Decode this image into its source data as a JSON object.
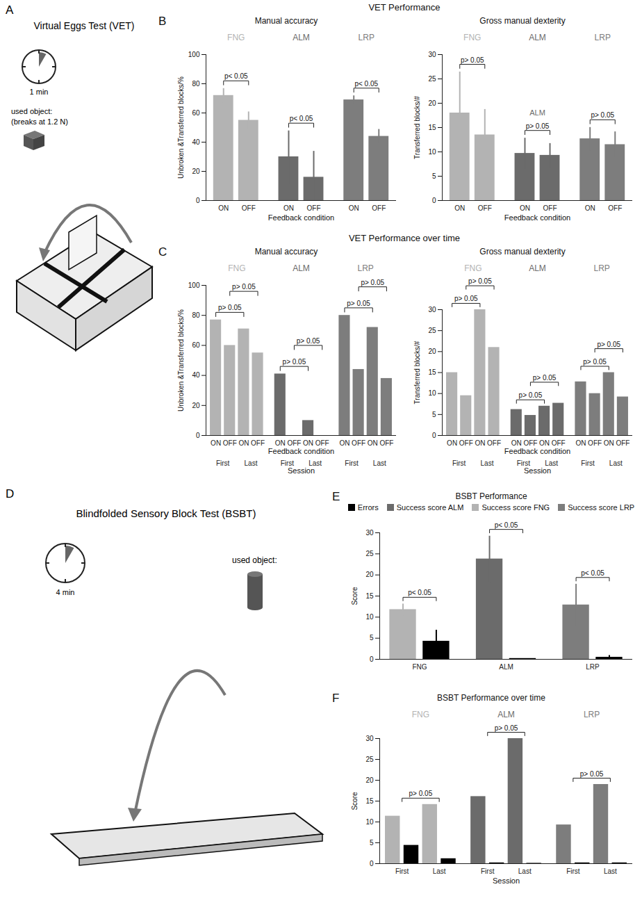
{
  "illustrations": [
    {
      "panel": "A",
      "title": "Virtual Eggs Test (VET)",
      "timer": "1 min",
      "object_label": "used object:",
      "object_note": "(breaks at 1.2 N)"
    },
    {
      "panel": "D",
      "title": "Blindfolded Sensory Block Test (BSBT)",
      "timer": "4 min",
      "object_label": "used object:"
    }
  ],
  "chart_data": [
    {
      "panel": "B",
      "supertitle": "VET Performance",
      "type": "bar",
      "title": "Manual accuracy",
      "ylabel": "Unbroken &Transferred blocks/%",
      "xlabel": "Feedback condition",
      "categories": [
        "ON",
        "OFF"
      ],
      "ylim": [
        0,
        100
      ],
      "yticks": [
        0,
        20,
        40,
        60,
        80,
        100
      ],
      "groups": [
        {
          "name": "FNG",
          "color": "#b3b3b3",
          "values": [
            72,
            55
          ],
          "errors": [
            5,
            6
          ]
        },
        {
          "name": "ALM",
          "color": "#6b6b6b",
          "values": [
            30,
            16
          ],
          "errors": [
            18,
            18
          ]
        },
        {
          "name": "LRP",
          "color": "#7d7d7d",
          "values": [
            69,
            44
          ],
          "errors": [
            3,
            5
          ]
        }
      ],
      "comparisons": [
        {
          "text": "p< 0.05",
          "from": [
            0,
            0
          ],
          "to": [
            0,
            1
          ]
        },
        {
          "text": "p< 0.05",
          "from": [
            1,
            0
          ],
          "to": [
            1,
            1
          ]
        },
        {
          "text": "p< 0.05",
          "from": [
            2,
            0
          ],
          "to": [
            2,
            1
          ]
        }
      ]
    },
    {
      "type": "bar",
      "title": "Gross manual dexterity",
      "ylabel": "Transferred blocks/#",
      "xlabel": "Feedback condition",
      "categories": [
        "ON",
        "OFF"
      ],
      "ylim": [
        0,
        30
      ],
      "yticks": [
        0,
        5,
        10,
        15,
        20,
        25,
        30
      ],
      "groups": [
        {
          "name": "FNG",
          "color": "#b3b3b3",
          "values": [
            18,
            13.5
          ],
          "errors": [
            8.5,
            5.3
          ]
        },
        {
          "name": "ALM",
          "color": "#6b6b6b",
          "values": [
            9.7,
            9.3
          ],
          "errors": [
            3.2,
            2.5
          ]
        },
        {
          "name": "LRP",
          "color": "#7d7d7d",
          "values": [
            12.7,
            11.5
          ],
          "errors": [
            2.4,
            2.7
          ]
        }
      ],
      "comparisons": [
        {
          "text": "p> 0.05",
          "from": [
            0,
            0
          ],
          "to": [
            0,
            1
          ]
        },
        {
          "text": "p> 0.05",
          "from": [
            1,
            0
          ],
          "to": [
            1,
            1
          ]
        },
        {
          "text": "p> 0.05",
          "from": [
            2,
            0
          ],
          "to": [
            2,
            1
          ]
        }
      ],
      "annotations": [
        {
          "text": "ALM",
          "group": 1,
          "y": 18
        }
      ]
    },
    {
      "panel": "C",
      "supertitle": "VET Performance over time",
      "type": "bar",
      "title": "Manual accuracy",
      "ylabel": "Unbroken &Transferred blocks/%",
      "xlabel": "Feedback condition",
      "categories": [
        "ON",
        "OFF",
        "ON",
        "OFF"
      ],
      "sessions": [
        "First",
        "Last"
      ],
      "session_label": "Session",
      "ylim": [
        0,
        100
      ],
      "yticks": [
        0,
        20,
        40,
        60,
        80,
        100
      ],
      "groups": [
        {
          "name": "FNG",
          "color": "#b3b3b3",
          "values": [
            77,
            60,
            71,
            55
          ]
        },
        {
          "name": "ALM",
          "color": "#6b6b6b",
          "values": [
            41,
            0,
            10,
            0
          ]
        },
        {
          "name": "LRP",
          "color": "#7d7d7d",
          "values": [
            80,
            44,
            72,
            38
          ]
        }
      ],
      "comparisons": [
        {
          "text": "p> 0.05",
          "from": [
            0,
            0
          ],
          "to": [
            0,
            2
          ]
        },
        {
          "text": "p> 0.05",
          "from": [
            0,
            1
          ],
          "to": [
            0,
            3
          ]
        },
        {
          "text": "p> 0.05",
          "from": [
            1,
            0
          ],
          "to": [
            1,
            2
          ]
        },
        {
          "text": "p> 0.05",
          "from": [
            1,
            1
          ],
          "to": [
            1,
            3
          ]
        },
        {
          "text": "p> 0.05",
          "from": [
            2,
            0
          ],
          "to": [
            2,
            2
          ]
        },
        {
          "text": "p> 0.05",
          "from": [
            2,
            1
          ],
          "to": [
            2,
            3
          ]
        }
      ]
    },
    {
      "type": "bar",
      "title": "Gross manual dexterity",
      "ylabel": "Transferred blocks/#",
      "xlabel": "Feedback condition",
      "categories": [
        "ON",
        "OFF",
        "ON",
        "OFF"
      ],
      "sessions": [
        "First",
        "Last"
      ],
      "session_label": "Session",
      "ylim": [
        0,
        30
      ],
      "yticks": [
        0,
        5,
        10,
        15,
        20,
        25,
        30
      ],
      "groups": [
        {
          "name": "FNG",
          "color": "#b3b3b3",
          "values": [
            15,
            9.5,
            30,
            21
          ]
        },
        {
          "name": "ALM",
          "color": "#6b6b6b",
          "values": [
            6.2,
            4.8,
            7,
            7.7
          ]
        },
        {
          "name": "LRP",
          "color": "#7d7d7d",
          "values": [
            12.8,
            10,
            15,
            9.2
          ]
        }
      ],
      "comparisons": [
        {
          "text": "p> 0.05",
          "from": [
            0,
            0
          ],
          "to": [
            0,
            2
          ]
        },
        {
          "text": "p> 0.05",
          "from": [
            0,
            1
          ],
          "to": [
            0,
            3
          ]
        },
        {
          "text": "p> 0.05",
          "from": [
            1,
            0
          ],
          "to": [
            1,
            2
          ]
        },
        {
          "text": "p> 0.05",
          "from": [
            1,
            1
          ],
          "to": [
            1,
            3
          ]
        },
        {
          "text": "p> 0.05",
          "from": [
            2,
            0
          ],
          "to": [
            2,
            2
          ]
        },
        {
          "text": "p> 0.05",
          "from": [
            2,
            1
          ],
          "to": [
            2,
            3
          ]
        }
      ]
    },
    {
      "panel": "E",
      "type": "bar",
      "title": "BSBT Performance",
      "ylabel": "Score",
      "categories": [
        "FNG",
        "ALM",
        "LRP"
      ],
      "ylim": [
        0,
        30
      ],
      "yticks": [
        0,
        5,
        10,
        15,
        20,
        25,
        30
      ],
      "legend": "top",
      "series": [
        {
          "name": "Errors",
          "color": "#000000",
          "values": [
            4.3,
            0.2,
            0.5
          ],
          "errors": [
            2.7,
            null,
            0.5
          ]
        },
        {
          "name": "Success score ALM",
          "color": "#6b6b6b",
          "values": [
            null,
            23.8,
            null
          ],
          "errors": [
            null,
            5.5,
            null
          ]
        },
        {
          "name": "Success score FNG",
          "color": "#b3b3b3",
          "values": [
            11.8,
            null,
            null
          ],
          "errors": [
            1.4,
            null,
            null
          ]
        },
        {
          "name": "Success score LRP",
          "color": "#7d7d7d",
          "values": [
            null,
            null,
            12.9
          ],
          "errors": [
            null,
            null,
            5
          ]
        }
      ],
      "comparisons": [
        {
          "text": "p< 0.05",
          "category": 0
        },
        {
          "text": "p< 0.05",
          "category": 1
        },
        {
          "text": "p< 0.05",
          "category": 2
        }
      ]
    },
    {
      "panel": "F",
      "type": "bar",
      "title": "BSBT Performance over time",
      "ylabel": "Score",
      "xlabel": "Session",
      "categories": [
        "First",
        "Last"
      ],
      "ylim": [
        0,
        30
      ],
      "yticks": [
        0,
        5,
        10,
        15,
        20,
        25,
        30
      ],
      "error_color": "#000000",
      "groups": [
        {
          "name": "FNG",
          "color": "#b3b3b3",
          "values": [
            11.4,
            14.2
          ],
          "error_scores": [
            4.4,
            1.2
          ]
        },
        {
          "name": "ALM",
          "color": "#6b6b6b",
          "values": [
            16.1,
            30
          ],
          "error_scores": [
            0.2,
            0.1
          ]
        },
        {
          "name": "LRP",
          "color": "#7d7d7d",
          "values": [
            9.3,
            19
          ],
          "error_scores": [
            0.2,
            0.2
          ]
        }
      ],
      "comparisons": [
        {
          "text": "p> 0.05",
          "from": [
            0,
            0
          ],
          "to": [
            0,
            1
          ]
        },
        {
          "text": "p> 0.05",
          "from": [
            1,
            0
          ],
          "to": [
            1,
            1
          ]
        },
        {
          "text": "p> 0.05",
          "from": [
            2,
            0
          ],
          "to": [
            2,
            1
          ]
        }
      ]
    }
  ]
}
